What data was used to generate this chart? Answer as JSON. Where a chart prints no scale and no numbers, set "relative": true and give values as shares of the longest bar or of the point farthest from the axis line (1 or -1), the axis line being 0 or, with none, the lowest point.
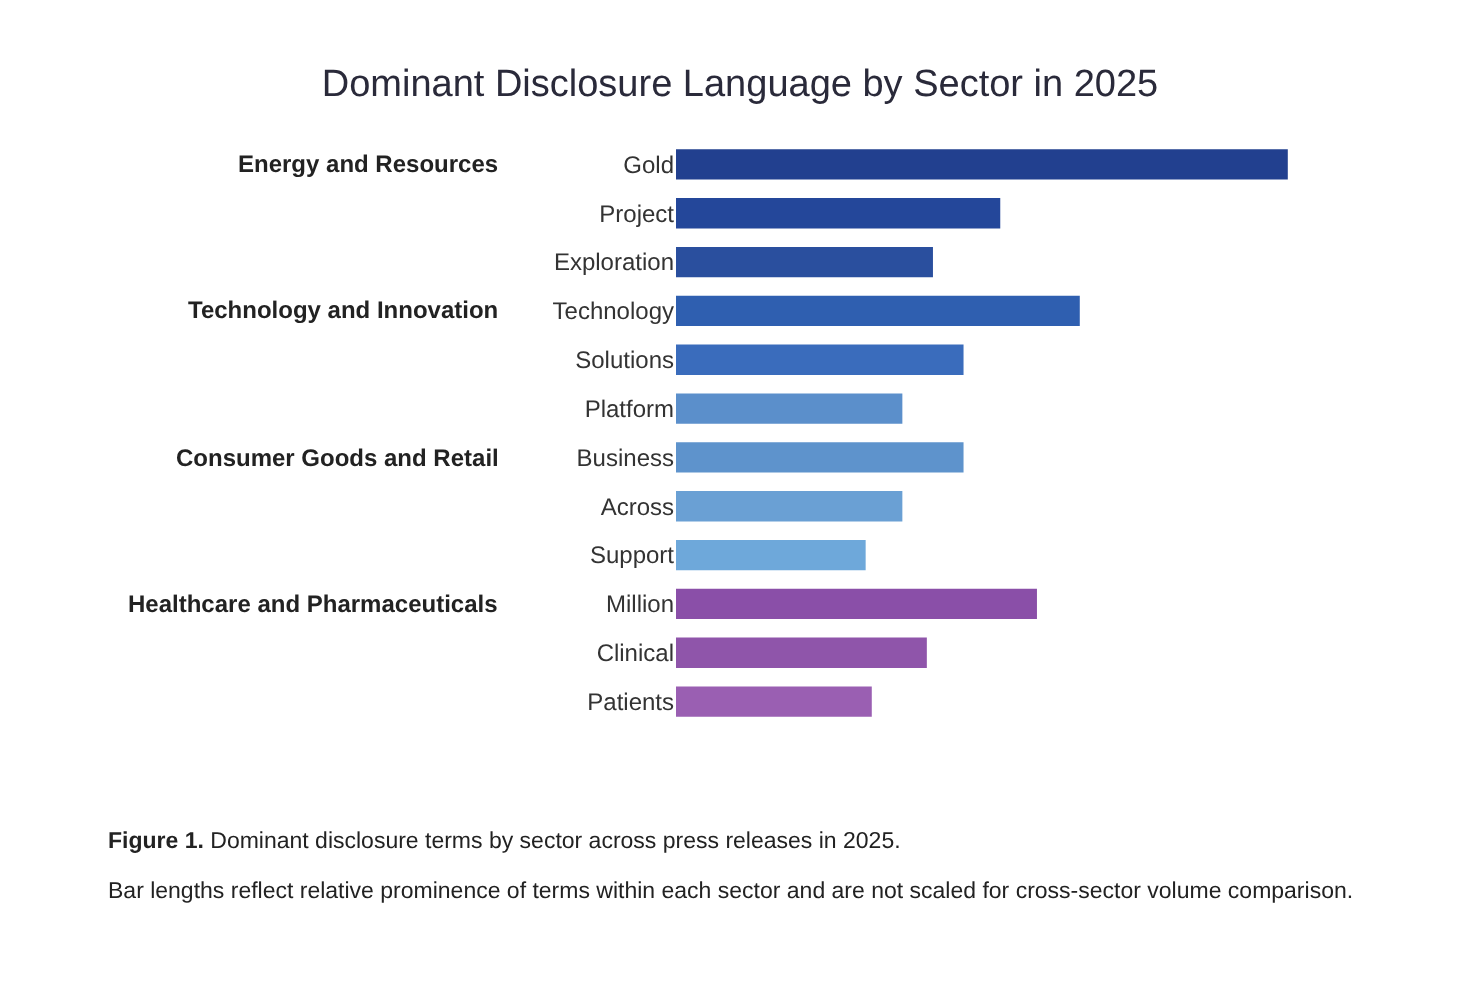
{
  "chart_data": {
    "type": "bar",
    "orientation": "horizontal",
    "relative": true,
    "title": "Dominant Disclosure Language by Sector in 2025",
    "categories": [
      "Gold",
      "Project",
      "Exploration",
      "Technology",
      "Solutions",
      "Platform",
      "Business",
      "Across",
      "Support",
      "Million",
      "Clinical",
      "Patients"
    ],
    "values": [
      1,
      0.53,
      0.42,
      0.66,
      0.47,
      0.37,
      0.47,
      0.37,
      0.31,
      0.59,
      0.41,
      0.32
    ],
    "colors": [
      "#22408f",
      "#24479a",
      "#2a4f9e",
      "#2f5fb0",
      "#3a6cbc",
      "#5b8fcb",
      "#5e93cc",
      "#6aa0d4",
      "#6ea8da",
      "#8a4fa8",
      "#8f55aa",
      "#9a5fb2"
    ],
    "annotations": [
      "Energy and Resources",
      "Technology and Innovation",
      "Consumer Goods and Retail",
      "Healthcare and Pharmaceuticals",
      "Figure 1. Dominant disclosure terms by sector across press releases in 2025.",
      "Bar lengths reflect relative prominence of terms within each sector and are not scaled for cross-sector volume comparison."
    ],
    "legend": false
  }
}
